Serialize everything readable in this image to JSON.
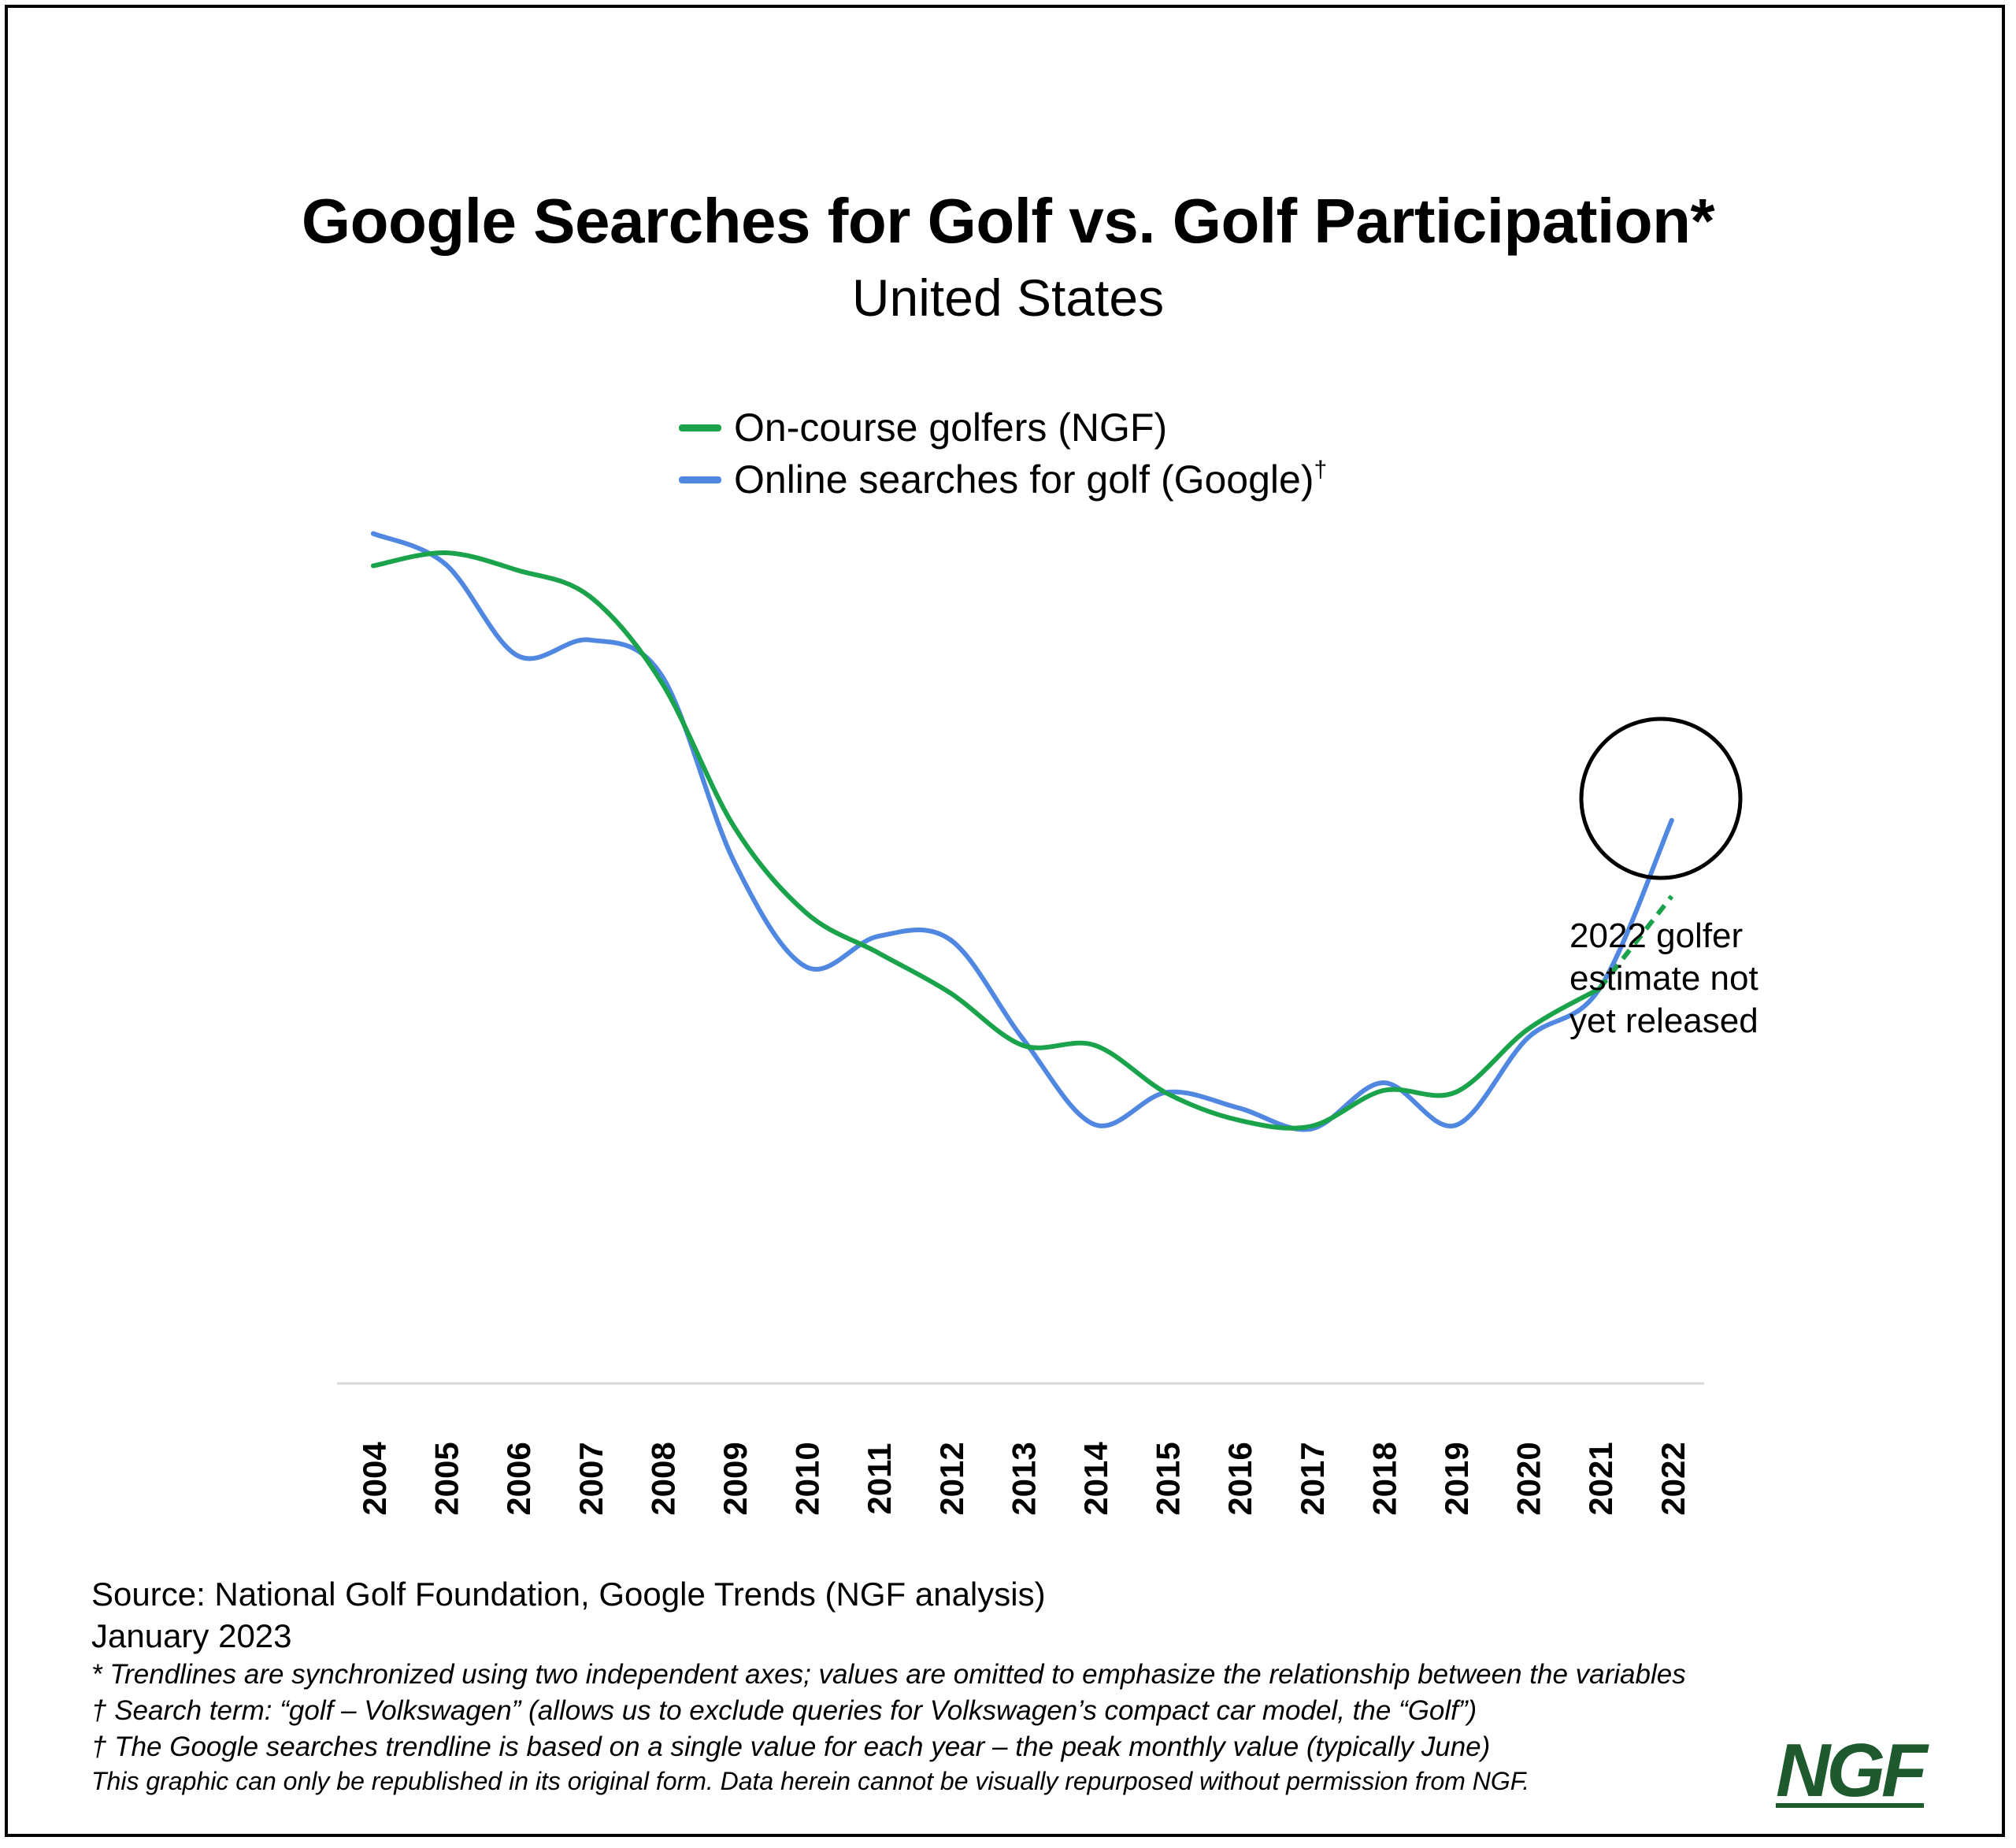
{
  "chart_data": {
    "type": "line",
    "title": "Google Searches for Golf vs. Golf Participation*",
    "subtitle": "United States",
    "x": [
      "2004",
      "2005",
      "2006",
      "2007",
      "2008",
      "2009",
      "2010",
      "2011",
      "2012",
      "2013",
      "2014",
      "2015",
      "2016",
      "2017",
      "2018",
      "2019",
      "2020",
      "2021",
      "2022"
    ],
    "y_note": "relative index (values omitted in original; higher = more)",
    "ylim": [
      0,
      100
    ],
    "grid": false,
    "legend_position": "top-center",
    "series": [
      {
        "name": "On-course golfers (NGF)",
        "color": "#1aa34a",
        "values": [
          93.8,
          95.3,
          93.3,
          90.3,
          80.4,
          63.9,
          54.0,
          49.4,
          44.8,
          38.8,
          38.8,
          33.3,
          30.2,
          29.5,
          33.6,
          33.4,
          40.6,
          45.3,
          null
        ],
        "estimate_segment": {
          "x": [
            "2021",
            "2022"
          ],
          "values": [
            45.3,
            55.9
          ],
          "style": "dashed"
        }
      },
      {
        "name": "Online searches for golf (Google)",
        "legend_mark": "†",
        "color": "#4f87e1",
        "values": [
          97.5,
          94.0,
          83.5,
          85.3,
          81.2,
          59.9,
          47.8,
          51.3,
          50.9,
          39.6,
          29.7,
          33.4,
          31.6,
          29.2,
          34.5,
          29.6,
          39.6,
          45.3,
          64.6
        ]
      }
    ],
    "annotations": [
      {
        "text": "2022 golfer\nestimate not\nyet released",
        "target": "2022",
        "shape": "circle"
      }
    ]
  },
  "legend": {
    "items": [
      {
        "label": "On-course golfers (NGF)",
        "color": "#1aa34a",
        "mark": ""
      },
      {
        "label": "Online searches for golf (Google)",
        "color": "#4f87e1",
        "mark": "†"
      }
    ]
  },
  "footer": {
    "source": "Source: National Golf Foundation, Google Trends (NGF analysis)",
    "date": "January 2023",
    "note1": "* Trendlines are synchronized using two independent axes; values are omitted to emphasize the relationship between the variables",
    "note2": "† Search term: “golf – Volkswagen” (allows us to exclude queries for Volkswagen’s compact car model, the “Golf”)",
    "note3": "† The Google searches trendline is based on a single value for each year – the peak monthly value (typically June)",
    "note4": "This graphic can only be republished in its original form. Data herein cannot be visually repurposed without permission from NGF."
  },
  "logo": {
    "text": "NGF",
    "color": "#1f5a2f"
  }
}
